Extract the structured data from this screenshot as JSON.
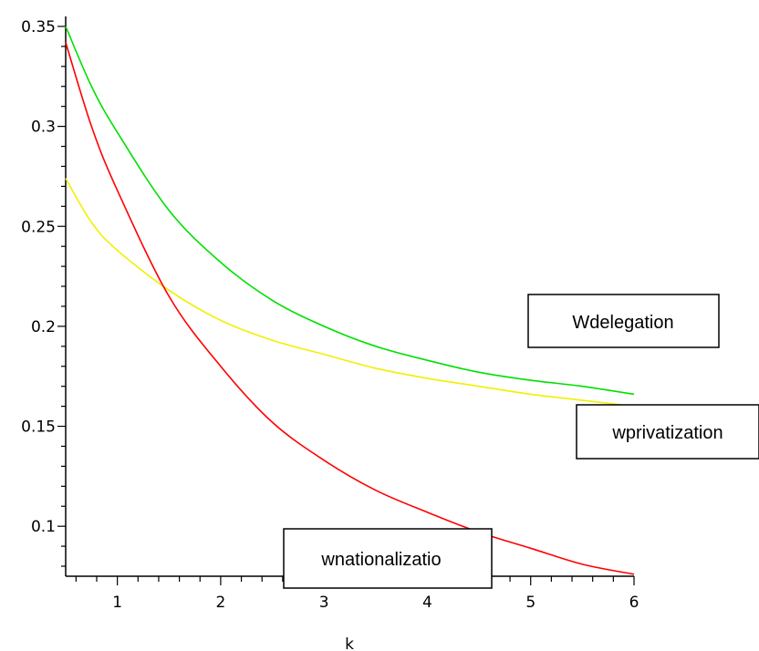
{
  "chart_data": {
    "type": "line",
    "xlabel": "k",
    "ylabel": "",
    "xlim": [
      0.5,
      6
    ],
    "ylim": [
      0.075,
      0.355
    ],
    "x_ticks": [
      1,
      2,
      3,
      4,
      5,
      6
    ],
    "x_tick_labels": [
      "1",
      "2",
      "3",
      "4",
      "5",
      "6"
    ],
    "y_ticks": [
      0.1,
      0.15,
      0.2,
      0.25,
      0.3,
      0.35
    ],
    "y_tick_labels": [
      "0.1",
      "0.15",
      "0.2",
      "0.25",
      "0.3",
      "0.35"
    ],
    "grid": false,
    "series": [
      {
        "name": "Wdelegation",
        "color": "#00e000",
        "x": [
          0.5,
          0.75,
          1,
          1.5,
          2,
          2.5,
          3,
          3.5,
          4,
          4.5,
          5,
          5.5,
          6
        ],
        "y": [
          0.35,
          0.32,
          0.297,
          0.258,
          0.232,
          0.213,
          0.2,
          0.19,
          0.183,
          0.177,
          0.173,
          0.17,
          0.166
        ]
      },
      {
        "name": "wprivatization",
        "color": "#f0f000",
        "x": [
          0.5,
          0.75,
          1,
          1.5,
          2,
          2.5,
          3,
          3.5,
          4,
          4.5,
          5,
          5.5,
          6
        ],
        "y": [
          0.274,
          0.252,
          0.238,
          0.218,
          0.203,
          0.193,
          0.186,
          0.179,
          0.174,
          0.17,
          0.166,
          0.163,
          0.16
        ]
      },
      {
        "name": "wnationalizatio",
        "color": "#ff0000",
        "x": [
          0.5,
          0.75,
          1,
          1.5,
          2,
          2.5,
          3,
          3.5,
          4,
          4.5,
          5,
          5.5,
          6
        ],
        "y": [
          0.342,
          0.3,
          0.268,
          0.215,
          0.18,
          0.152,
          0.133,
          0.118,
          0.107,
          0.097,
          0.089,
          0.081,
          0.076
        ]
      }
    ],
    "annotations": [
      {
        "text": "Wdelegation",
        "series": "Wdelegation"
      },
      {
        "text": "wprivatization",
        "series": "wprivatization"
      },
      {
        "text": "wnationalizatio",
        "series": "wnationalizatio"
      }
    ]
  }
}
